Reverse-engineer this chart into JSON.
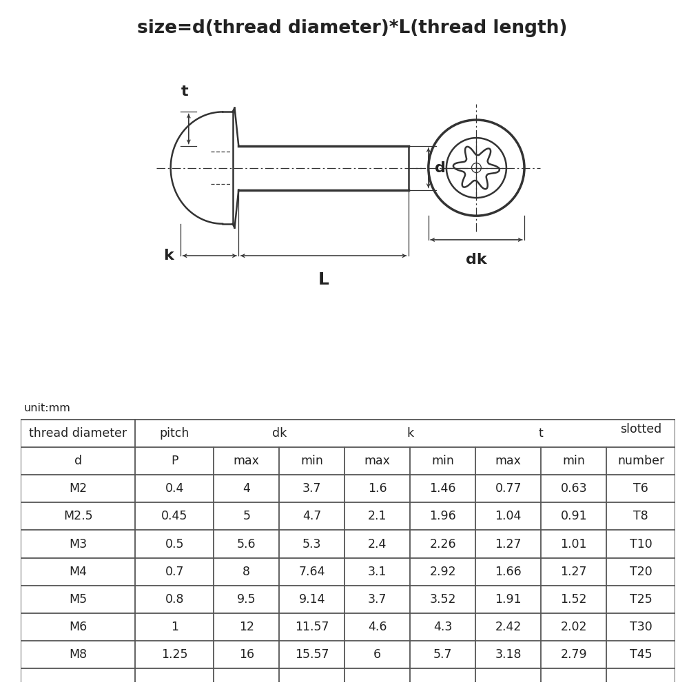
{
  "title": "size=d(thread diameter)*L(thread length)",
  "title_fontsize": 19,
  "background_color": "#ffffff",
  "table_headers_row1": [
    "thread diameter",
    "pitch",
    "dk",
    "",
    "k",
    "",
    "t",
    "",
    "slotted"
  ],
  "table_headers_row2": [
    "d",
    "P",
    "max",
    "min",
    "max",
    "min",
    "max",
    "min",
    "number"
  ],
  "table_data": [
    [
      "M2",
      "0.4",
      "4",
      "3.7",
      "1.6",
      "1.46",
      "0.77",
      "0.63",
      "T6"
    ],
    [
      "M2.5",
      "0.45",
      "5",
      "4.7",
      "2.1",
      "1.96",
      "1.04",
      "0.91",
      "T8"
    ],
    [
      "M3",
      "0.5",
      "5.6",
      "5.3",
      "2.4",
      "2.26",
      "1.27",
      "1.01",
      "T10"
    ],
    [
      "M4",
      "0.7",
      "8",
      "7.64",
      "3.1",
      "2.92",
      "1.66",
      "1.27",
      "T20"
    ],
    [
      "M5",
      "0.8",
      "9.5",
      "9.14",
      "3.7",
      "3.52",
      "1.91",
      "1.52",
      "T25"
    ],
    [
      "M6",
      "1",
      "12",
      "11.57",
      "4.6",
      "4.3",
      "2.42",
      "2.02",
      "T30"
    ],
    [
      "M8",
      "1.25",
      "16",
      "15.57",
      "6",
      "5.7",
      "3.18",
      "2.79",
      "T45"
    ]
  ],
  "unit_text": "unit:mm",
  "line_color": "#333333",
  "text_color": "#222222",
  "table_line_color": "#555555",
  "lw_main": 1.8,
  "lw_thin": 0.9,
  "lw_thick": 2.5
}
